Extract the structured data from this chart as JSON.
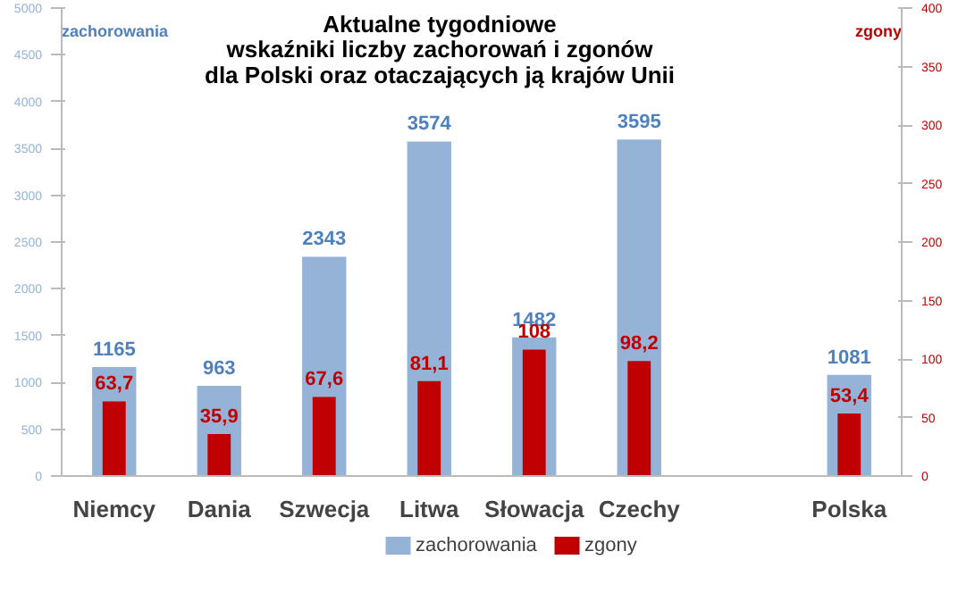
{
  "chart_data": {
    "type": "bar",
    "title": "Aktualne tygodniowe\nwskaźniki liczby zachorowań i zgonów\ndla Polski oraz otaczających ją krajów Unii",
    "ylabel": "zachorowania",
    "y2label": "zgony",
    "categories": [
      "Niemcy",
      "Dania",
      "Szwecja",
      "Litwa",
      "Słowacja",
      "Czechy",
      null,
      "Polska"
    ],
    "series": [
      {
        "name": "zachorowania",
        "color": "#95b3d7",
        "values": [
          1165,
          963,
          2343,
          3574,
          1482,
          3595,
          null,
          1081
        ],
        "value_labels": [
          "1165",
          "963",
          "2343",
          "3574",
          "1482",
          "3595",
          null,
          "1081"
        ]
      },
      {
        "name": "zgony",
        "color": "#c00000",
        "axis": "y2",
        "values": [
          63.7,
          35.9,
          67.6,
          81.1,
          108,
          98.2,
          null,
          53.4
        ],
        "value_labels": [
          "63,7",
          "35,9",
          "67,6",
          "81,1",
          "108",
          "98,2",
          null,
          "53,4"
        ]
      }
    ],
    "ylim": [
      0,
      5000
    ],
    "yticks": [
      0,
      500,
      1000,
      1500,
      2000,
      2500,
      3000,
      3500,
      4000,
      4500,
      5000
    ],
    "y2lim": [
      0,
      400
    ],
    "y2ticks": [
      0,
      50,
      100,
      150,
      200,
      250,
      300,
      350,
      400
    ],
    "grid": false,
    "legend": "bottom"
  }
}
